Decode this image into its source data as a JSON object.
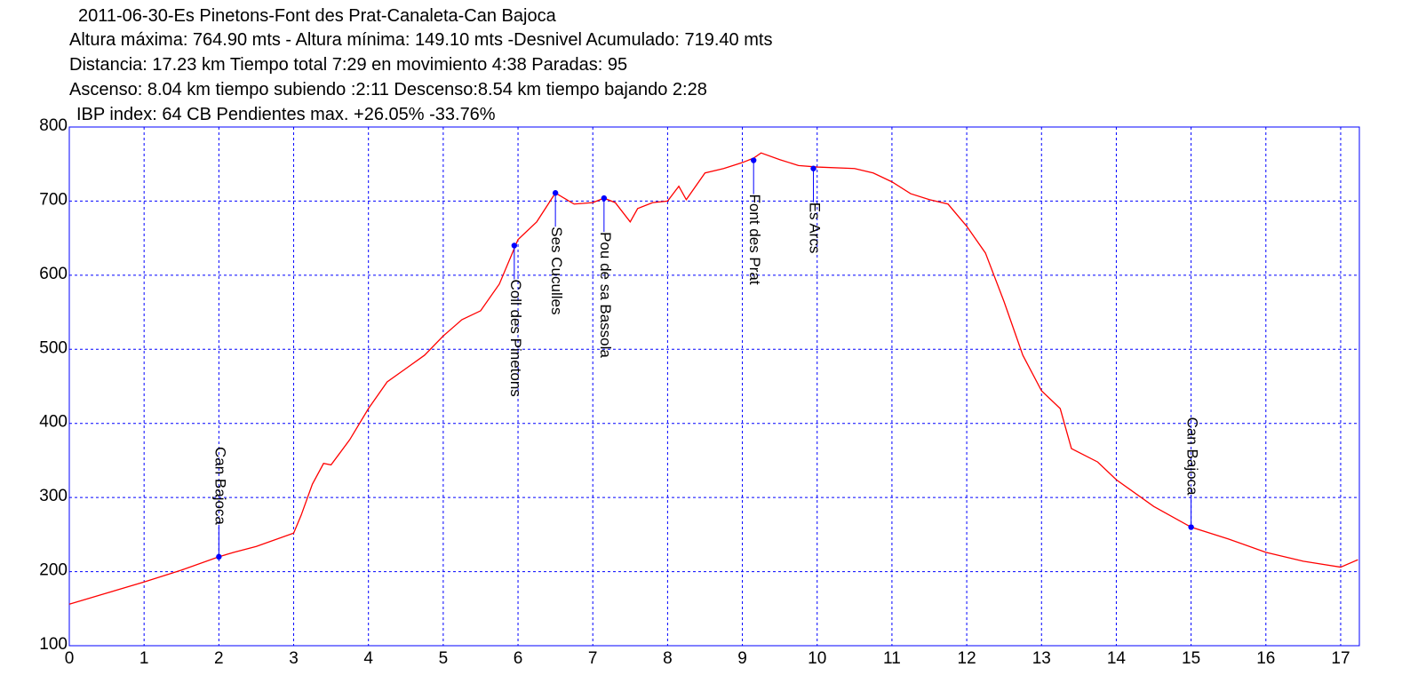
{
  "chart_data": {
    "type": "line",
    "title": "2011-06-30-Es Pinetons-Font des Prat-Canaleta-Can Bajoca",
    "notes": [
      "Altura máxima: 764.90 mts - Altura mínima: 149.10 mts -Desnivel Acumulado: 719.40 mts",
      "Distancia: 17.23 km  Tiempo total 7:29  en movimiento 4:38 Paradas: 95",
      "Ascenso: 8.04 km  tiempo subiendo :2:11  Descenso:8.54 km tiempo bajando 2:28",
      "IBP index: 64 CB  Pendientes max. +26.05%  -33.76%"
    ],
    "x": [
      0,
      0.5,
      1,
      1.5,
      2,
      2.2,
      2.5,
      3,
      3.1,
      3.25,
      3.4,
      3.5,
      3.75,
      4,
      4.25,
      4.5,
      4.75,
      5,
      5.25,
      5.5,
      5.75,
      6,
      6.25,
      6.5,
      6.75,
      7,
      7.15,
      7.3,
      7.5,
      7.6,
      7.8,
      8,
      8.15,
      8.25,
      8.5,
      8.75,
      9,
      9.15,
      9.25,
      9.5,
      9.75,
      10,
      10.5,
      10.75,
      11,
      11.25,
      11.5,
      11.75,
      12,
      12.25,
      12.5,
      12.75,
      13,
      13.25,
      13.4,
      13.75,
      14,
      14.5,
      15,
      15.5,
      16,
      16.5,
      17,
      17.23
    ],
    "series": [
      {
        "color": "#ff0000",
        "values": [
          156,
          171,
          186,
          202,
          220,
          226,
          234,
          252,
          276,
          318,
          346,
          344,
          378,
          420,
          456,
          474,
          492,
          518,
          540,
          552,
          588,
          648,
          672,
          711,
          696,
          698,
          704,
          698,
          672,
          690,
          698,
          700,
          720,
          702,
          738,
          744,
          752,
          758,
          765,
          756,
          748,
          746,
          744,
          738,
          726,
          710,
          702,
          696,
          666,
          630,
          564,
          492,
          444,
          420,
          366,
          348,
          324,
          288,
          260,
          244,
          226,
          214,
          206,
          216
        ]
      }
    ],
    "waypoints": [
      {
        "label": "Can Bajoca",
        "x": 2,
        "y": 220,
        "position": "above"
      },
      {
        "label": "Coll des Pinetons",
        "x": 5.95,
        "y": 640,
        "position": "below"
      },
      {
        "label": "Ses Cuculles",
        "x": 6.5,
        "y": 711,
        "position": "below"
      },
      {
        "label": "Pou de sa Bassola",
        "x": 7.15,
        "y": 704,
        "position": "below"
      },
      {
        "label": "Font des Prat",
        "x": 9.15,
        "y": 755,
        "position": "below"
      },
      {
        "label": "Es Arcs",
        "x": 9.95,
        "y": 744,
        "position": "below"
      },
      {
        "label": "Can Bajoca",
        "x": 15,
        "y": 260,
        "position": "above"
      }
    ],
    "waypoint_color": "#0000ff",
    "xlim": [
      0,
      17.25
    ],
    "ylim": [
      100,
      800
    ],
    "xticks": [
      0,
      1,
      2,
      3,
      4,
      5,
      6,
      7,
      8,
      9,
      10,
      11,
      12,
      13,
      14,
      15,
      16,
      17
    ],
    "yticks": [
      100,
      200,
      300,
      400,
      500,
      600,
      700,
      800
    ],
    "grid": true,
    "grid_color": "#0000ff"
  }
}
